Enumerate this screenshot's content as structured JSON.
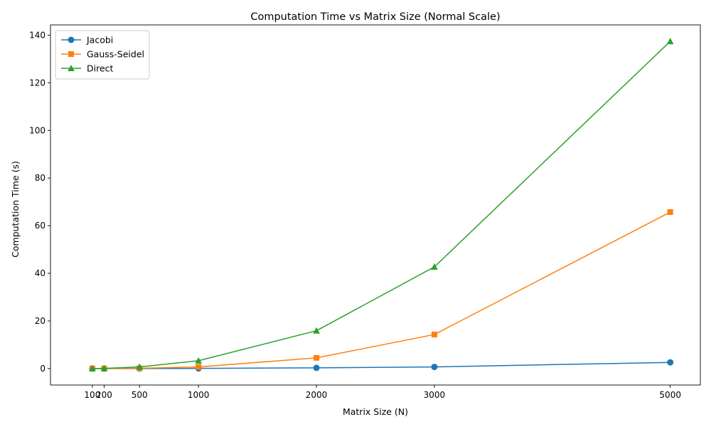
{
  "chart_data": {
    "type": "line",
    "title": "Computation Time vs Matrix Size (Normal Scale)",
    "xlabel": "Matrix Size (N)",
    "ylabel": "Computation Time (s)",
    "x": [
      100,
      200,
      500,
      1000,
      2000,
      3000,
      5000
    ],
    "xticks": [
      100,
      200,
      500,
      1000,
      2000,
      3000,
      5000
    ],
    "yticks": [
      0,
      20,
      40,
      60,
      80,
      100,
      120,
      140
    ],
    "xlim": [
      -255,
      5255
    ],
    "ylim": [
      -6.9,
      144.3
    ],
    "grid": false,
    "legend_position": "top-left",
    "series": [
      {
        "name": "Jacobi",
        "color": "#1f77b4",
        "marker": "circle",
        "values": [
          0.0,
          0.0,
          0.02,
          0.08,
          0.3,
          0.7,
          2.6
        ]
      },
      {
        "name": "Gauss-Seidel",
        "color": "#ff7f0e",
        "marker": "square",
        "values": [
          0.0,
          0.02,
          0.12,
          0.7,
          4.5,
          14.3,
          65.7
        ]
      },
      {
        "name": "Direct",
        "color": "#2ca02c",
        "marker": "triangle",
        "values": [
          0.0,
          0.1,
          0.7,
          3.3,
          15.9,
          42.7,
          137.4
        ]
      }
    ]
  }
}
